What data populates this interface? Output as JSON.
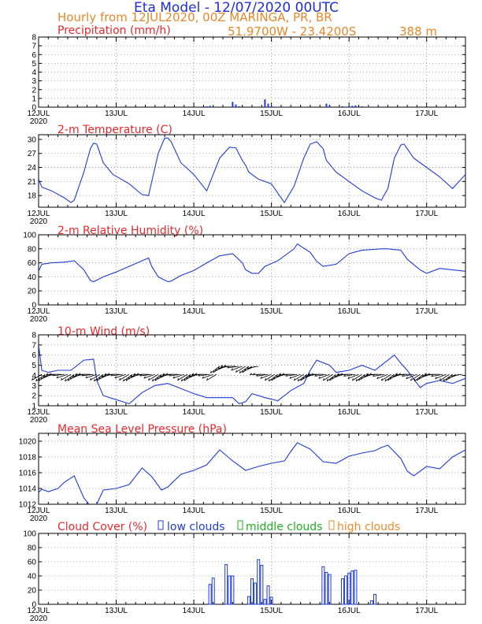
{
  "header": {
    "title": "Eta Model - 12/07/2020 00UTC",
    "subtitle": "Hourly from 12JUL2020, 00Z  MARINGA, PR, BR",
    "coords": "51.9700W - 23.4200S",
    "elevation": "388  m"
  },
  "colors": {
    "title": "#1f2dd6",
    "subtitle": "#e8872a",
    "panel_title": "#e8282b",
    "line": "#1f3bd9",
    "low": "#1f3bd9",
    "mid": "#22b022",
    "high": "#f0892b",
    "wind_barb": "#000000"
  },
  "x_axis": {
    "days": [
      "12JUL",
      "13JUL",
      "14JUL",
      "15JUL",
      "16JUL",
      "17JUL"
    ],
    "year": "2020",
    "hours_total": 132
  },
  "chart_data": [
    {
      "id": "precip",
      "type": "bar",
      "title": "Precipitation (mm/h)",
      "ylim": [
        0,
        8
      ],
      "yticks": [
        0,
        1,
        2,
        3,
        4,
        5,
        6,
        7,
        8
      ],
      "x_hours": [
        52,
        53,
        60,
        61,
        62,
        70,
        71,
        72,
        74,
        76,
        82,
        89,
        90,
        94,
        96,
        97,
        98,
        100,
        102,
        104
      ],
      "values": [
        0.1,
        0.15,
        0.6,
        0.3,
        0.1,
        0.9,
        0.4,
        0.1,
        0.05,
        0.05,
        0.05,
        0.4,
        0.2,
        0.1,
        0.15,
        0.15,
        0.2,
        0.1,
        0.05,
        0.05
      ]
    },
    {
      "id": "temp",
      "type": "line",
      "title": "2-m Temperature (C)",
      "ylim": [
        15.5,
        31
      ],
      "yticks": [
        18,
        21,
        24,
        27,
        30
      ],
      "x_hours": [
        0,
        1,
        4,
        8,
        10,
        11,
        14,
        16,
        17,
        18,
        20,
        23,
        28,
        32,
        34,
        35,
        37,
        39,
        40,
        41,
        44,
        48,
        52,
        56,
        59,
        61,
        63,
        64,
        65,
        68,
        72,
        76,
        79,
        82,
        84,
        86,
        88,
        89,
        92,
        96,
        100,
        104,
        106,
        108,
        110,
        112,
        113,
        116,
        120,
        124,
        128,
        132
      ],
      "values": [
        21.5,
        19.8,
        19,
        17.5,
        16.5,
        17,
        23,
        28,
        29.2,
        29,
        25,
        22.5,
        20.5,
        18.2,
        18,
        21,
        27,
        30.3,
        30.3,
        29.5,
        25,
        22.5,
        19,
        26,
        28.3,
        28.2,
        25.5,
        24.5,
        23,
        21.5,
        20.5,
        16.5,
        20,
        26,
        29,
        29.5,
        28,
        25.5,
        23,
        21,
        19,
        17.5,
        17,
        19.5,
        26,
        28.8,
        29,
        26,
        24,
        22,
        19.5,
        22.5
      ]
    },
    {
      "id": "rh",
      "type": "line",
      "title": "2-m Relative Humidity (%)",
      "ylim": [
        0,
        100
      ],
      "yticks": [
        0,
        20,
        40,
        60,
        80,
        100
      ],
      "x_hours": [
        0,
        1,
        4,
        8,
        11,
        14,
        16,
        17,
        20,
        24,
        28,
        34,
        35,
        37,
        40,
        41,
        44,
        48,
        52,
        56,
        60,
        63,
        64,
        66,
        68,
        70,
        74,
        79,
        80,
        84,
        86,
        88,
        92,
        96,
        100,
        106,
        108,
        112,
        114,
        118,
        120,
        124,
        132
      ],
      "values": [
        48,
        58,
        60,
        61,
        63,
        50,
        35,
        33,
        40,
        47,
        55,
        67,
        55,
        40,
        33,
        34,
        42,
        49,
        60,
        70,
        73,
        60,
        50,
        45,
        45,
        55,
        63,
        80,
        87,
        75,
        62,
        55,
        58,
        73,
        78,
        80,
        80,
        78,
        65,
        50,
        45,
        52,
        48
      ]
    },
    {
      "id": "wind",
      "type": "line",
      "title": "10-m Wind (m/s)",
      "ylim": [
        1,
        8
      ],
      "yticks": [
        1,
        2,
        3,
        4,
        5,
        6,
        7,
        8
      ],
      "x_hours": [
        0,
        1,
        3,
        6,
        10,
        14,
        17,
        18,
        20,
        24,
        28,
        32,
        36,
        40,
        44,
        48,
        52,
        56,
        60,
        62,
        64,
        66,
        70,
        74,
        78,
        82,
        84,
        86,
        90,
        92,
        96,
        100,
        104,
        106,
        110,
        112,
        114,
        118,
        120,
        124,
        128,
        132
      ],
      "values": [
        7,
        4.5,
        4.3,
        4.5,
        4.5,
        5.5,
        5.6,
        3.5,
        2,
        1.6,
        1.2,
        2.3,
        3,
        3.2,
        2.7,
        2.2,
        1.8,
        1.8,
        1.8,
        1.2,
        1.4,
        2.2,
        1.8,
        1.5,
        2.5,
        3.2,
        4.5,
        5.5,
        5,
        4.3,
        4.5,
        5,
        4.5,
        5,
        6,
        5.2,
        4.5,
        2.8,
        3.2,
        3.5,
        3.2,
        3.7
      ]
    },
    {
      "id": "pres",
      "type": "line",
      "title": "Mean Sea Level Pressure (hPa)",
      "ylim": [
        1012,
        1021
      ],
      "yticks": [
        1012,
        1014,
        1016,
        1018,
        1020
      ],
      "x_hours": [
        0,
        1,
        3,
        6,
        8,
        11,
        14,
        16,
        18,
        20,
        24,
        28,
        32,
        35,
        38,
        40,
        44,
        48,
        52,
        56,
        60,
        64,
        68,
        72,
        76,
        78,
        80,
        84,
        88,
        92,
        96,
        100,
        104,
        106,
        108,
        112,
        114,
        116,
        120,
        124,
        128,
        132
      ],
      "values": [
        1013.5,
        1013.9,
        1013.6,
        1014,
        1014.8,
        1015.6,
        1012.8,
        1011.8,
        1012,
        1013.8,
        1014,
        1014.5,
        1016.6,
        1015.5,
        1013.8,
        1014.2,
        1015.8,
        1016.3,
        1017,
        1018.9,
        1017.5,
        1016.3,
        1016.8,
        1017.2,
        1017.5,
        1018.7,
        1019.8,
        1019,
        1017.4,
        1017.2,
        1018.1,
        1018.5,
        1018.8,
        1019.2,
        1019.5,
        1017.8,
        1016.2,
        1015.6,
        1016.8,
        1016.5,
        1018,
        1018.9
      ]
    },
    {
      "id": "cloud",
      "type": "bar",
      "title": "Cloud Cover (%)",
      "ylim": [
        0,
        100
      ],
      "yticks": [
        0,
        20,
        40,
        60,
        80,
        100
      ],
      "legend": [
        "low clouds",
        "middle clouds",
        "high clouds"
      ],
      "series": [
        {
          "name": "low clouds",
          "x_hours": [
            53,
            54,
            58,
            59,
            60,
            65,
            66,
            67,
            68,
            69,
            70,
            71,
            72,
            88,
            89,
            90,
            94,
            95,
            96,
            97,
            98,
            103,
            104
          ],
          "values": [
            28,
            37,
            56,
            40,
            40,
            11,
            36,
            30,
            63,
            55,
            7,
            26,
            10,
            53,
            45,
            42,
            36,
            40,
            44,
            47,
            48,
            5,
            14
          ]
        }
      ]
    }
  ]
}
